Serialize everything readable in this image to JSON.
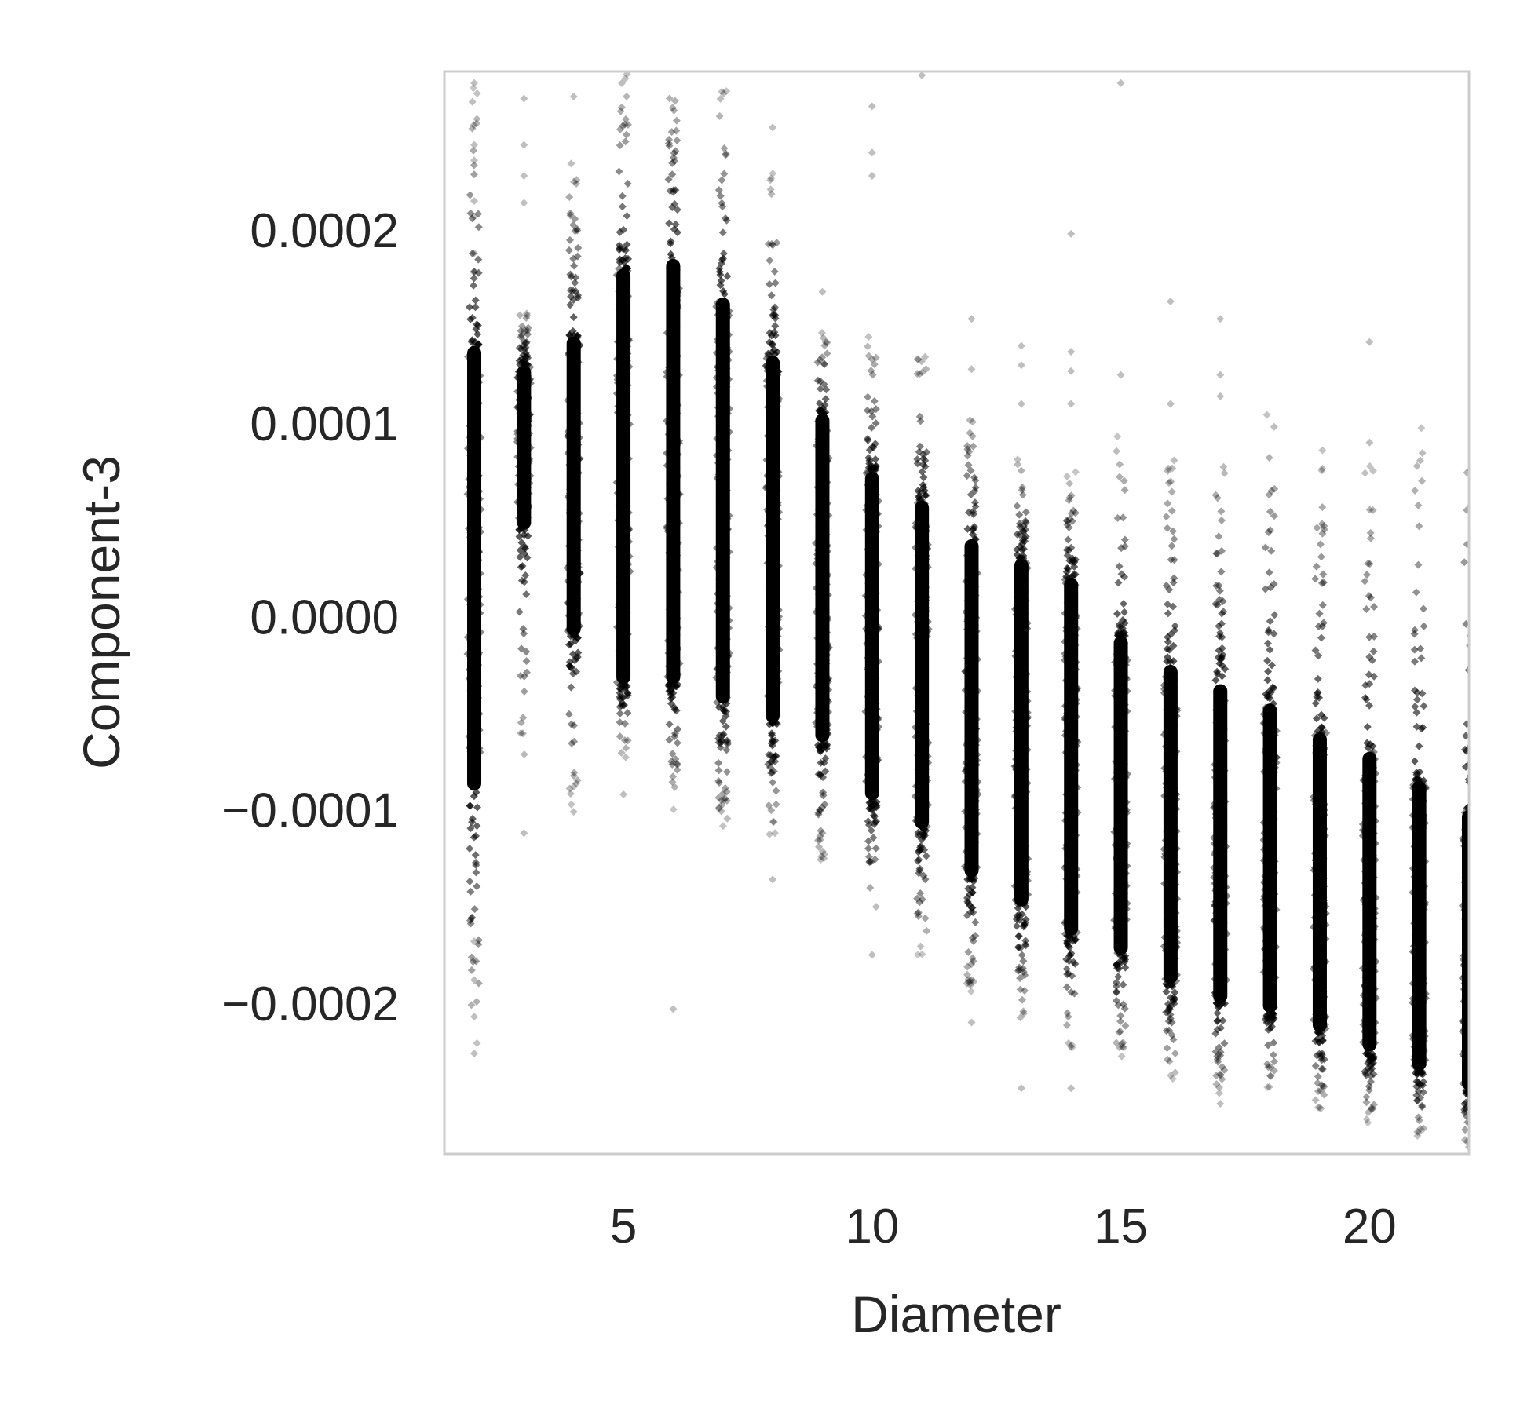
{
  "chart_data": {
    "type": "scatter",
    "title": "",
    "xlabel": "Diameter",
    "ylabel": "Component-3",
    "xlim": [
      1.4,
      22.0
    ],
    "ylim": [
      -0.000278,
      0.000282
    ],
    "xticks": [
      5,
      10,
      15,
      20
    ],
    "xtick_labels": [
      "5",
      "10",
      "15",
      "20"
    ],
    "yticks": [
      0.0002,
      0.0001,
      0.0,
      -0.0001,
      -0.0002
    ],
    "ytick_labels": [
      "0.0002",
      "0.0001",
      "0.0000",
      "−0.0001",
      "−0.0002"
    ],
    "grid": false,
    "marker": "diamond",
    "marker_color": "#000000",
    "frame_color": "#cccccc",
    "columns": [
      {
        "x": 2,
        "dense": [
          -9e-05,
          0.00014
        ],
        "sparse": [
          -0.000226,
          0.000275
        ],
        "outliers": [
          0.000285,
          0.000276,
          0.000244,
          0.000236,
          0.000215,
          0.000207,
          0.000188,
          0.000178,
          -0.000168,
          -0.000188,
          -0.000207,
          -0.000226
        ]
      },
      {
        "x": 3,
        "dense": [
          4.5e-05,
          0.00013
        ],
        "sparse": [
          -8.5e-05,
          0.00016
        ],
        "outliers": [
          0.000268,
          0.000244,
          0.000228,
          0.000214,
          -0.000112
        ]
      },
      {
        "x": 4,
        "dense": [
          -1e-05,
          0.000145
        ],
        "sparse": [
          -0.0001,
          0.00024
        ],
        "outliers": [
          0.000284,
          0.000269,
          -8.8e-05,
          -0.000101
        ]
      },
      {
        "x": 5,
        "dense": [
          -3.5e-05,
          0.00018
        ],
        "sparse": [
          -7.5e-05,
          0.000284
        ],
        "outliers": [
          -9.2e-05
        ]
      },
      {
        "x": 6,
        "dense": [
          -3.5e-05,
          0.000185
        ],
        "sparse": [
          -0.0001,
          0.000284
        ],
        "outliers": [
          -0.000203
        ]
      },
      {
        "x": 7,
        "dense": [
          -4.5e-05,
          0.000165
        ],
        "sparse": [
          -0.00011,
          0.000276
        ],
        "outliers": []
      },
      {
        "x": 8,
        "dense": [
          -5.5e-05,
          0.000135
        ],
        "sparse": [
          -0.000115,
          0.00023
        ],
        "outliers": [
          0.000253,
          -0.000136
        ]
      },
      {
        "x": 9,
        "dense": [
          -6.5e-05,
          0.000105
        ],
        "sparse": [
          -0.00013,
          0.00015
        ],
        "outliers": [
          0.000168,
          0.000284
        ]
      },
      {
        "x": 10,
        "dense": [
          -9.5e-05,
          7.5e-05
        ],
        "sparse": [
          -0.000155,
          0.000148
        ],
        "outliers": [
          0.000264,
          0.00024,
          0.000228,
          -0.000175
        ]
      },
      {
        "x": 11,
        "dense": [
          -0.00011,
          6e-05
        ],
        "sparse": [
          -0.000175,
          0.00014
        ],
        "outliers": [
          0.00028
        ]
      },
      {
        "x": 12,
        "dense": [
          -0.000135,
          4e-05
        ],
        "sparse": [
          -0.000195,
          0.00011
        ],
        "outliers": [
          0.000154,
          0.000128,
          -0.00021
        ]
      },
      {
        "x": 13,
        "dense": [
          -0.00015,
          3e-05
        ],
        "sparse": [
          -0.000215,
          8.5e-05
        ],
        "outliers": [
          0.00014,
          0.00013,
          0.00011,
          -0.000244
        ]
      },
      {
        "x": 14,
        "dense": [
          -0.000165,
          2e-05
        ],
        "sparse": [
          -0.000225,
          7.5e-05
        ],
        "outliers": [
          0.000198,
          0.000137,
          0.000127,
          0.00011,
          -0.000244
        ]
      },
      {
        "x": 15,
        "dense": [
          -0.000175,
          -1e-05
        ],
        "sparse": [
          -0.00023,
          9.5e-05
        ],
        "outliers": [
          0.000276,
          0.000125
        ]
      },
      {
        "x": 16,
        "dense": [
          -0.00019,
          -2.5e-05
        ],
        "sparse": [
          -0.00024,
          9e-05
        ],
        "outliers": [
          0.000163,
          0.00011
        ]
      },
      {
        "x": 17,
        "dense": [
          -0.0002,
          -3.5e-05
        ],
        "sparse": [
          -0.00025,
          9e-05
        ],
        "outliers": [
          0.000154,
          0.000125,
          0.000114,
          -0.000252
        ]
      },
      {
        "x": 18,
        "dense": [
          -0.000205,
          -4.5e-05
        ],
        "sparse": [
          -0.000245,
          0.00011
        ],
        "outliers": []
      },
      {
        "x": 19,
        "dense": [
          -0.000215,
          -6e-05
        ],
        "sparse": [
          -0.000255,
          9e-05
        ],
        "outliers": []
      },
      {
        "x": 20,
        "dense": [
          -0.000225,
          -7e-05
        ],
        "sparse": [
          -0.000262,
          8e-05
        ],
        "outliers": [
          0.000142,
          9e-05
        ]
      },
      {
        "x": 21,
        "dense": [
          -0.000235,
          -8.5e-05
        ],
        "sparse": [
          -0.00027,
          0.0001
        ],
        "outliers": []
      },
      {
        "x": 22,
        "dense": [
          -0.000245,
          -0.0001
        ],
        "sparse": [
          -0.000275,
          0.00011
        ],
        "outliers": []
      }
    ]
  }
}
